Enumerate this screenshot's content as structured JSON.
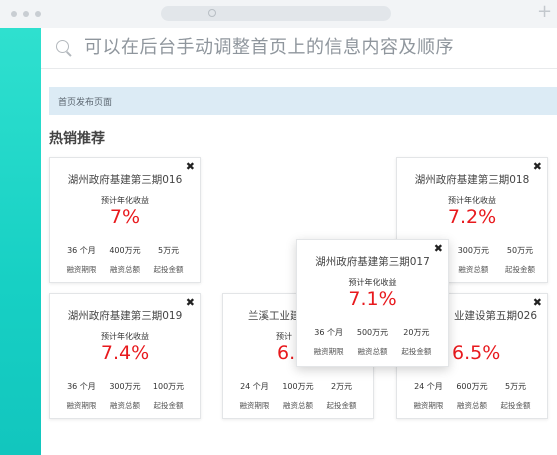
{
  "search": {
    "text": "可以在后台手动调整首页上的信息内容及顺序"
  },
  "infobar": {
    "text": "首页发布页面"
  },
  "section": {
    "title": "热销推荐"
  },
  "window": {
    "new_tab": "+"
  },
  "colors": {
    "accent": "#17d0c4",
    "rate": "#e8191d",
    "infobar": "#dcebf5"
  },
  "cards": [
    {
      "title": "湖州政府基建第三期016",
      "sub": "预计年化收益",
      "rate": "7%",
      "stats": [
        {
          "v": "36 个月",
          "l": "融资期限"
        },
        {
          "v": "400万元",
          "l": "融资总额"
        },
        {
          "v": "5万元",
          "l": "起投金额"
        }
      ]
    },
    {
      "title": "湖州政府基建第三期018",
      "sub": "预计年化收益",
      "rate": "7.2%",
      "stats": [
        {
          "v": "300万元",
          "l": "融资总额"
        },
        {
          "v": "50万元",
          "l": "起投金额"
        }
      ]
    },
    {
      "title": "湖州政府基建第三期019",
      "sub": "预计年化收益",
      "rate": "7.4%",
      "stats": [
        {
          "v": "36 个月",
          "l": "融资期限"
        },
        {
          "v": "300万元",
          "l": "融资总额"
        },
        {
          "v": "100万元",
          "l": "起投金额"
        }
      ]
    },
    {
      "title": "兰溪工业建",
      "sub": "预计",
      "rate": "6.",
      "stats": [
        {
          "v": "24 个月",
          "l": "融资期限"
        },
        {
          "v": "100万元",
          "l": "融资总额"
        },
        {
          "v": "2万元",
          "l": "起投金额"
        }
      ]
    },
    {
      "title": "业建设第五期026",
      "rate": "6.5%",
      "stats": [
        {
          "v": "24 个月",
          "l": "融资期限"
        },
        {
          "v": "600万元",
          "l": "融资总额"
        },
        {
          "v": "5万元",
          "l": "起投金额"
        }
      ]
    },
    {
      "title": "湖州政府基建第三期017",
      "sub": "预计年化收益",
      "rate": "7.1%",
      "stats": [
        {
          "v": "36 个月",
          "l": "融资期限"
        },
        {
          "v": "500万元",
          "l": "融资总额"
        },
        {
          "v": "20万元",
          "l": "起投金额"
        }
      ]
    }
  ]
}
